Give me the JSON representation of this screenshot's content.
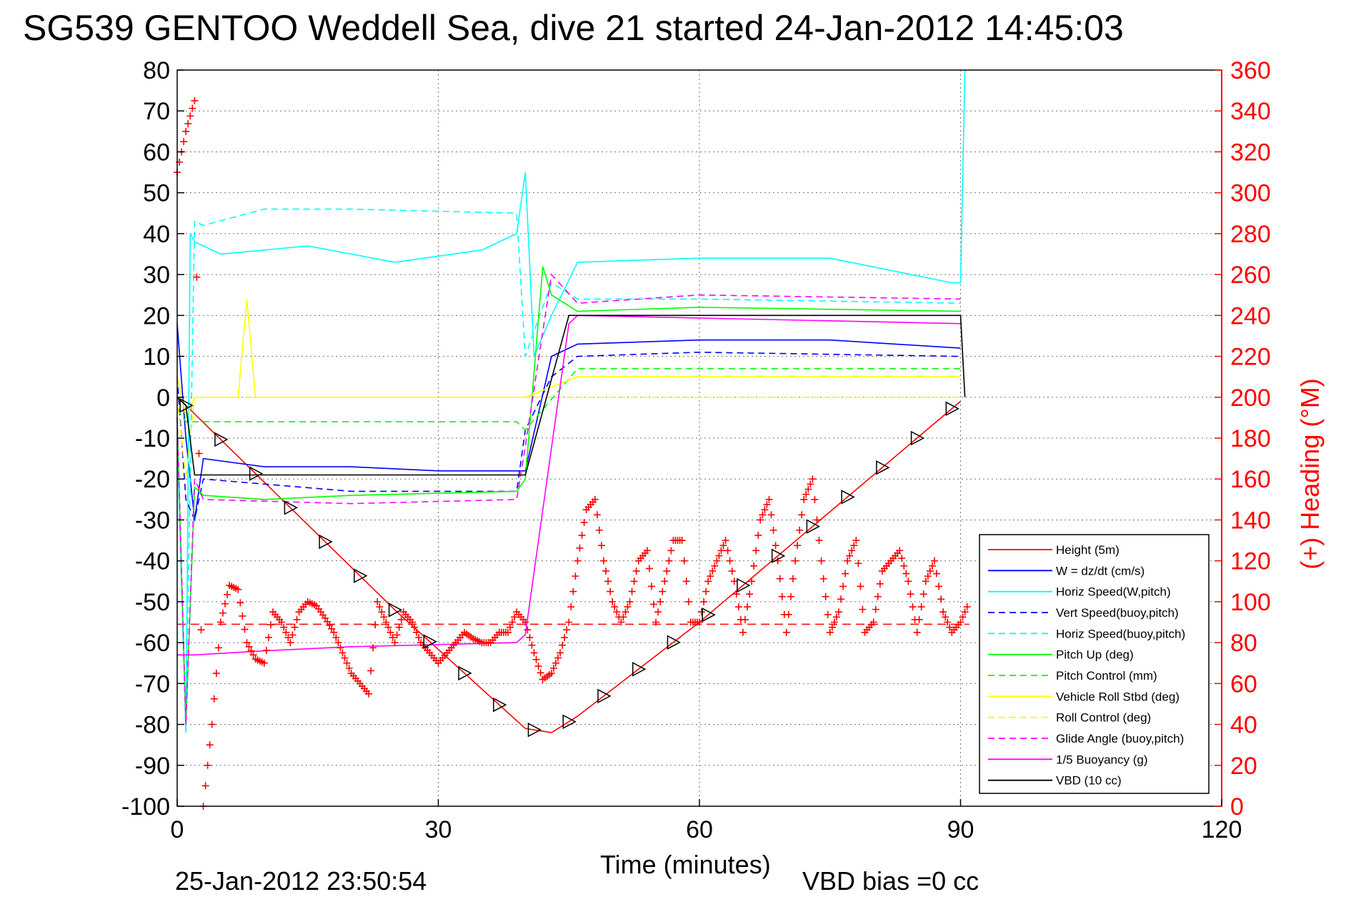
{
  "chart_data": {
    "type": "line",
    "title": "SG539 GENTOO Weddell Sea, dive 21 started 24-Jan-2012 14:45:03",
    "xlabel": "Time (minutes)",
    "ylabel_right": "(+) Heading (°M)",
    "footer_date": "25-Jan-2012 23:50:54",
    "footer_vbd": "VBD bias =0 cc",
    "xlim": [
      0,
      120
    ],
    "ylim": [
      -100,
      80
    ],
    "ylim_right": [
      0,
      360
    ],
    "x_ticks": [
      "0",
      "30",
      "60",
      "90",
      "120"
    ],
    "y_ticks": [
      "80",
      "70",
      "60",
      "50",
      "40",
      "30",
      "20",
      "10",
      "0",
      "-10",
      "-20",
      "-30",
      "-40",
      "-50",
      "-60",
      "-70",
      "-80",
      "-90",
      "-100"
    ],
    "y_ticks_right": [
      "360",
      "340",
      "320",
      "300",
      "280",
      "260",
      "240",
      "220",
      "200",
      "180",
      "160",
      "140",
      "120",
      "100",
      "80",
      "60",
      "40",
      "20",
      "0"
    ],
    "grid": true,
    "legend_position": "bottom-right",
    "colors": {
      "red": "#ff0000",
      "blue": "#0000ff",
      "cyan": "#00ffff",
      "green": "#00ff00",
      "yellow": "#ffff00",
      "magenta": "#ff00ff",
      "black": "#000000"
    },
    "series": [
      {
        "name": "Height (5m)",
        "color": "#ff0000",
        "dash": false,
        "x": [
          0,
          1,
          13,
          25,
          40,
          43,
          46,
          60,
          90
        ],
        "y": [
          0,
          -2,
          -27,
          -52,
          -81,
          -82,
          -78,
          -55,
          -1
        ]
      },
      {
        "name": "W = dz/dt (cm/s)",
        "color": "#0000ff",
        "dash": false,
        "x": [
          0,
          1,
          2,
          3,
          10,
          20,
          30,
          38,
          40,
          43,
          46,
          60,
          75,
          90
        ],
        "y": [
          18,
          -10,
          -30,
          -15,
          -17,
          -17,
          -18,
          -18,
          -18,
          10,
          13,
          14,
          14,
          12
        ]
      },
      {
        "name": "Horiz Speed(W,pitch)",
        "color": "#00ffff",
        "dash": false,
        "x": [
          0,
          1,
          1.5,
          2,
          5,
          15,
          25,
          35,
          39,
          40,
          41,
          43,
          46,
          60,
          75,
          89,
          90,
          90.5
        ],
        "y": [
          -10,
          -82,
          40,
          38,
          35,
          37,
          33,
          36,
          40,
          55,
          10,
          20,
          33,
          34,
          34,
          28,
          28,
          80
        ]
      },
      {
        "name": "Vert Speed(buoy,pitch)",
        "color": "#0000ff",
        "dash": true,
        "x": [
          0,
          1,
          2,
          3,
          20,
          39,
          40,
          43,
          46,
          60,
          90
        ],
        "y": [
          5,
          -25,
          -30,
          -20,
          -23,
          -23,
          -8,
          5,
          10,
          11,
          10
        ]
      },
      {
        "name": "Horiz Speed(buoy,pitch)",
        "color": "#00ffff",
        "dash": true,
        "x": [
          0,
          1,
          2,
          3,
          10,
          20,
          39,
          40,
          43,
          46,
          60,
          90
        ],
        "y": [
          -5,
          -80,
          43,
          42,
          46,
          46,
          45,
          10,
          28,
          24,
          24,
          23
        ]
      },
      {
        "name": "Pitch Up (deg)",
        "color": "#00ff00",
        "dash": false,
        "x": [
          0,
          1,
          2,
          3,
          10,
          20,
          39,
          40,
          42,
          43,
          46,
          60,
          90
        ],
        "y": [
          -5,
          -80,
          -22,
          -24,
          -25,
          -24,
          -23,
          -20,
          32,
          25,
          21,
          22,
          21
        ]
      },
      {
        "name": "Pitch Control (mm)",
        "color": "#00ff00",
        "dash": true,
        "x": [
          0,
          1,
          2,
          39,
          40,
          46,
          90
        ],
        "y": [
          -3,
          -6,
          -6,
          -6,
          -8,
          7,
          7
        ]
      },
      {
        "name": "Vehicle Roll Stbd (deg)",
        "color": "#ffff00",
        "dash": false,
        "x": [
          0,
          1,
          2,
          5,
          7,
          8,
          9,
          20,
          39,
          40,
          46,
          90
        ],
        "y": [
          5,
          -5,
          0,
          0,
          0,
          24,
          0,
          0,
          0,
          0,
          5,
          5
        ]
      },
      {
        "name": "Roll Control (deg)",
        "color": "#ffff00",
        "dash": true,
        "x": [
          0,
          1,
          2,
          39,
          40,
          46,
          90
        ],
        "y": [
          0,
          -20,
          0,
          0,
          0,
          0,
          0
        ]
      },
      {
        "name": "Glide Angle (buoy,pitch)",
        "color": "#ff00ff",
        "dash": true,
        "x": [
          0,
          1,
          2,
          3,
          20,
          39,
          40,
          43,
          46,
          60,
          90
        ],
        "y": [
          -5,
          -80,
          -20,
          -25,
          -26,
          -25,
          -12,
          30,
          23,
          25,
          24
        ]
      },
      {
        "name": "1/5 Buoyancy (g)",
        "color": "#ff00ff",
        "dash": false,
        "x": [
          0,
          2,
          10,
          20,
          39,
          40,
          45,
          46,
          90
        ],
        "y": [
          -63,
          -63,
          -62,
          -61,
          -60,
          -58,
          18,
          20,
          18
        ]
      },
      {
        "name": "VBD (10 cc)",
        "color": "#000000",
        "dash": false,
        "x": [
          0,
          1,
          2,
          39,
          40,
          45,
          46,
          90,
          90.5
        ],
        "y": [
          0,
          -2,
          -19,
          -19,
          -19,
          20,
          20,
          20,
          0
        ]
      }
    ],
    "heading": {
      "name": "(+) Heading",
      "color": "#ff0000",
      "reference_value": 89,
      "x": [
        0,
        1,
        2,
        3,
        4,
        5,
        6,
        7,
        8,
        9,
        10,
        11,
        12,
        13,
        14,
        15,
        16,
        17,
        18,
        19,
        20,
        21,
        22,
        23,
        24,
        25,
        26,
        27,
        28,
        29,
        30,
        31,
        32,
        33,
        34,
        35,
        36,
        37,
        38,
        39,
        40,
        41,
        42,
        43,
        44,
        45,
        46,
        47,
        48,
        49,
        50,
        51,
        52,
        53,
        54,
        55,
        56,
        57,
        58,
        59,
        60,
        61,
        62,
        63,
        64,
        65,
        66,
        67,
        68,
        69,
        70,
        71,
        72,
        73,
        74,
        75,
        76,
        77,
        78,
        79,
        80,
        81,
        82,
        83,
        84,
        85,
        86,
        87,
        88,
        89,
        90,
        91
      ],
      "y": [
        310,
        330,
        345,
        0,
        40,
        90,
        108,
        106,
        80,
        72,
        70,
        95,
        90,
        80,
        95,
        100,
        98,
        92,
        85,
        75,
        65,
        60,
        55,
        100,
        90,
        80,
        95,
        90,
        80,
        75,
        70,
        75,
        80,
        85,
        82,
        80,
        80,
        85,
        85,
        95,
        90,
        75,
        62,
        65,
        75,
        90,
        120,
        145,
        150,
        120,
        100,
        90,
        100,
        120,
        125,
        90,
        110,
        130,
        130,
        90,
        90,
        110,
        120,
        130,
        110,
        85,
        110,
        140,
        150,
        120,
        85,
        120,
        150,
        160,
        120,
        85,
        95,
        120,
        130,
        85,
        90,
        115,
        120,
        125,
        110,
        85,
        110,
        120,
        95,
        85,
        90,
        100
      ]
    }
  }
}
